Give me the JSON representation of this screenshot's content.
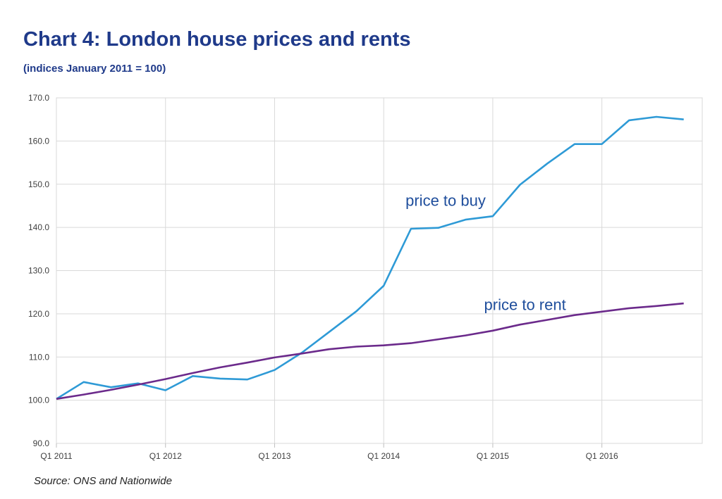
{
  "chart_data": {
    "type": "line",
    "title": "Chart 4: London house prices and rents",
    "subtitle": "(indices January 2011 = 100)",
    "source": "Source: ONS and Nationwide",
    "x": [
      2011.0,
      2011.25,
      2011.5,
      2011.75,
      2012.0,
      2012.25,
      2012.5,
      2012.75,
      2013.0,
      2013.25,
      2013.5,
      2013.75,
      2014.0,
      2014.25,
      2014.5,
      2014.75,
      2015.0,
      2015.25,
      2015.5,
      2015.75,
      2016.0,
      2016.25,
      2016.5,
      2016.75
    ],
    "xtick_labels": [
      "Q1 2011",
      "Q1 2012",
      "Q1 2013",
      "Q1 2014",
      "Q1 2015",
      "Q1 2016"
    ],
    "xlim": [
      2011.0,
      2016.92
    ],
    "ylim": [
      90,
      170
    ],
    "yticks": [
      90,
      100,
      110,
      120,
      130,
      140,
      150,
      160,
      170
    ],
    "ytick_labels": [
      "90.0",
      "100.0",
      "110.0",
      "120.0",
      "130.0",
      "140.0",
      "150.0",
      "160.0",
      "170.0"
    ],
    "grid": true,
    "series": [
      {
        "name": "price to buy",
        "color": "#2e9ad6",
        "values": [
          100.3,
          104.2,
          103.0,
          103.9,
          102.3,
          105.6,
          105.0,
          104.8,
          107.0,
          111.0,
          115.8,
          120.6,
          126.5,
          139.7,
          139.9,
          141.8,
          142.6,
          149.9,
          154.8,
          159.3,
          159.3,
          164.8,
          165.6,
          165.0
        ]
      },
      {
        "name": "price to rent",
        "color": "#6b2a8b",
        "values": [
          100.3,
          101.3,
          102.4,
          103.6,
          104.9,
          106.3,
          107.6,
          108.7,
          109.9,
          110.8,
          111.8,
          112.4,
          112.7,
          113.2,
          114.1,
          115.0,
          116.1,
          117.5,
          118.6,
          119.7,
          120.5,
          121.3,
          121.8,
          122.4
        ]
      }
    ],
    "annotations": [
      {
        "text": "price to buy",
        "color": "#1f4e9c",
        "x": 2014.2,
        "y": 145.0
      },
      {
        "text": "price to rent",
        "color": "#1f4e9c",
        "x": 2014.92,
        "y": 120.9
      }
    ]
  }
}
